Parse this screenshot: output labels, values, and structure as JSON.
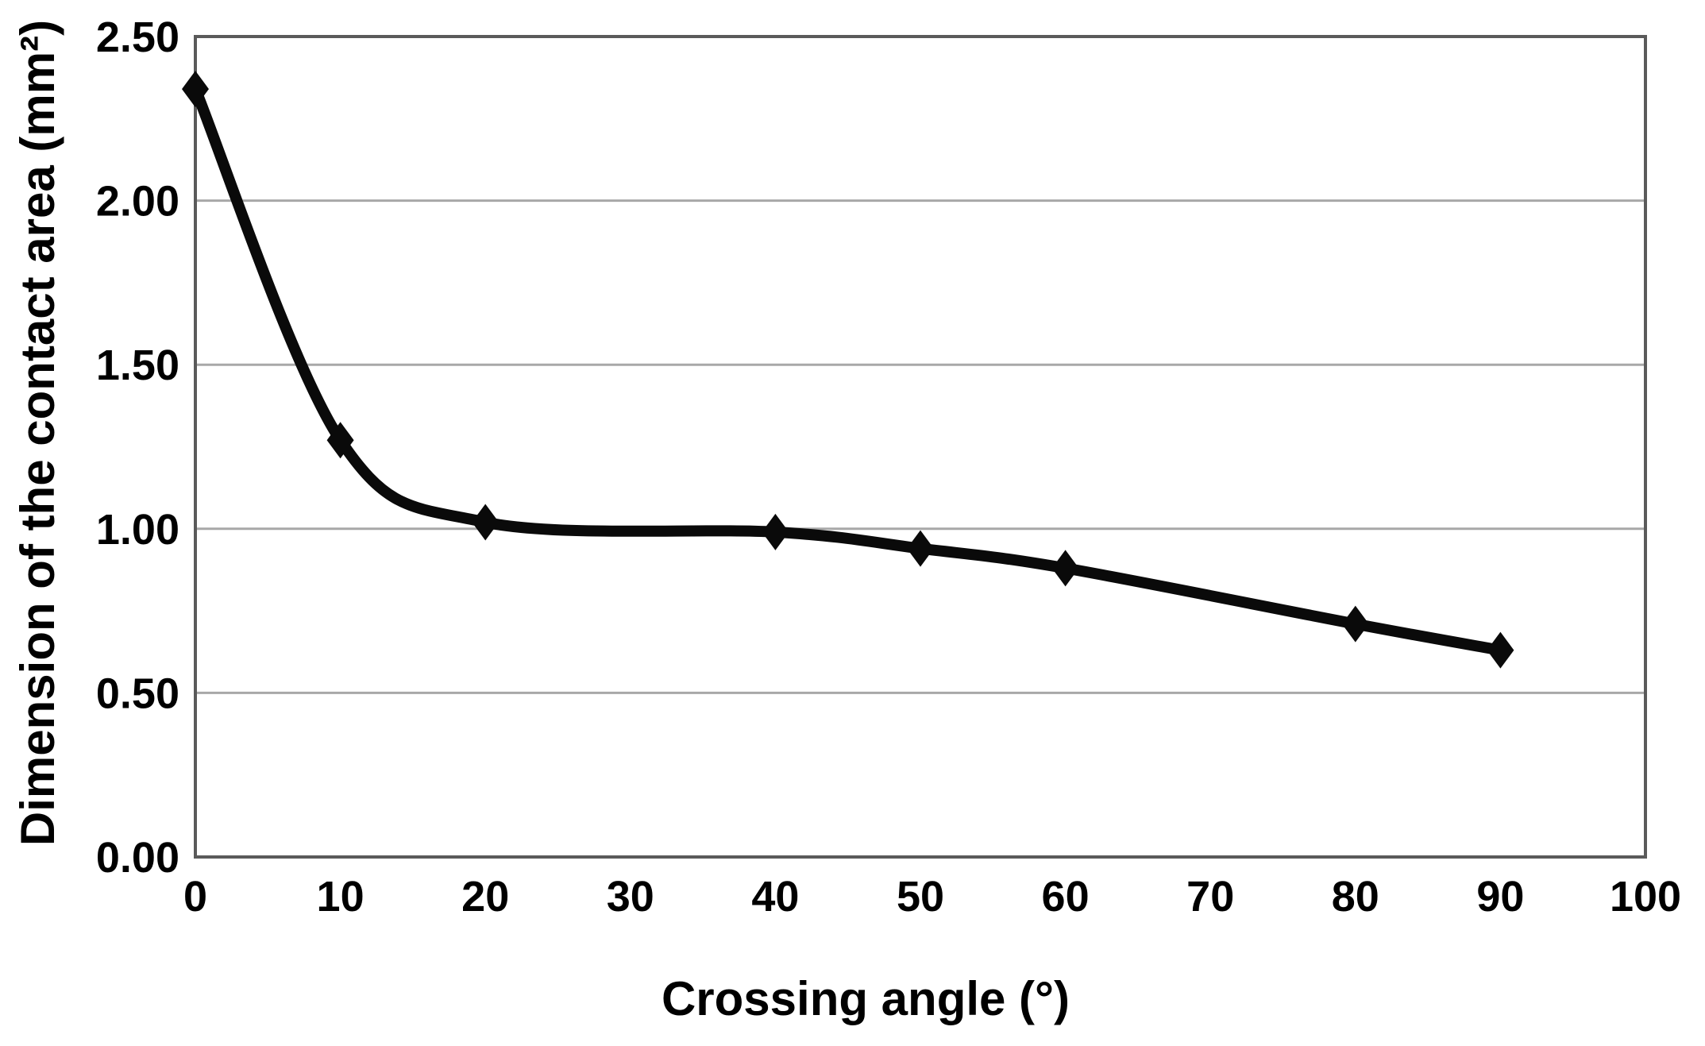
{
  "chart_data": {
    "type": "line",
    "title": "",
    "xlabel": "Crossing angle (°)",
    "ylabel": "Dimension of the contact area (mm²)",
    "x": [
      0,
      10,
      20,
      40,
      50,
      60,
      80,
      90
    ],
    "y": [
      2.34,
      1.27,
      1.02,
      0.99,
      0.94,
      0.88,
      0.71,
      0.63
    ],
    "xlim": [
      0,
      100
    ],
    "ylim": [
      0,
      2.5
    ],
    "xticks": [
      0,
      10,
      20,
      30,
      40,
      50,
      60,
      70,
      80,
      90,
      100
    ],
    "xtick_labels": [
      "0",
      "10",
      "20",
      "30",
      "40",
      "50",
      "60",
      "70",
      "80",
      "90",
      "100"
    ],
    "yticks": [
      0,
      0.5,
      1.0,
      1.5,
      2.0,
      2.5
    ],
    "ytick_labels": [
      "0.00",
      "0.50",
      "1.00",
      "1.50",
      "2.00",
      "2.50"
    ],
    "grid": "horizontal",
    "legend": "none",
    "marker": "diamond",
    "line_smoothing": true,
    "colors": {
      "line": "#0a0a0a",
      "marker": "#0a0a0a",
      "grid": "#a8a8a8",
      "frame": "#5a5a5a",
      "text": "#000000",
      "background": "#ffffff"
    }
  }
}
